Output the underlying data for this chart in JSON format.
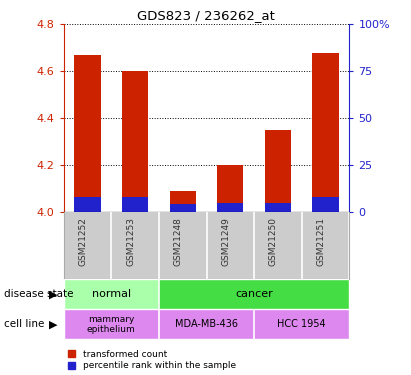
{
  "title": "GDS823 / 236262_at",
  "samples": [
    "GSM21252",
    "GSM21253",
    "GSM21248",
    "GSM21249",
    "GSM21250",
    "GSM21251"
  ],
  "transformed_counts": [
    4.67,
    4.6,
    4.09,
    4.2,
    4.35,
    4.68
  ],
  "percentile_ranks_pct": [
    8,
    8,
    4,
    5,
    5,
    8
  ],
  "ylim_left": [
    4.0,
    4.8
  ],
  "ylim_right": [
    0,
    100
  ],
  "yticks_left": [
    4.0,
    4.2,
    4.4,
    4.6,
    4.8
  ],
  "yticks_right": [
    0,
    25,
    50,
    75,
    100
  ],
  "bar_color_red": "#cc2200",
  "bar_color_blue": "#2222cc",
  "disease_state_normal_color": "#aaffaa",
  "disease_state_cancer_color": "#44dd44",
  "cell_line_color": "#dd88ee",
  "sample_box_color": "#cccccc",
  "legend_items": [
    {
      "label": "transformed count",
      "color": "#cc2200"
    },
    {
      "label": "percentile rank within the sample",
      "color": "#2222cc"
    }
  ],
  "left_axis_color": "#cc2200",
  "right_axis_color": "#2222cc",
  "background_color": "#ffffff"
}
